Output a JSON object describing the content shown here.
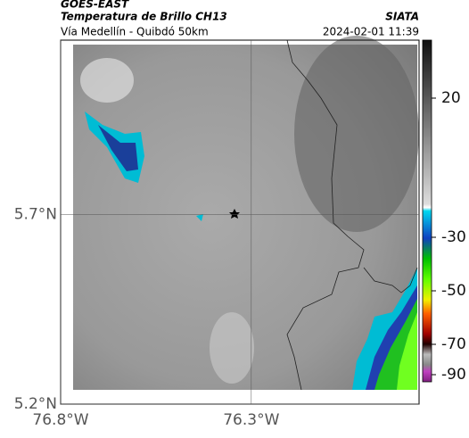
{
  "header": {
    "source": "GOES-EAST",
    "product": "Temperatura de Brillo CH13",
    "org": "SIATA",
    "route": "Vía Medellín - Quibdó 50km",
    "datetime": "2024-02-01 11:39"
  },
  "map": {
    "xlim": [
      -76.8,
      -75.86
    ],
    "ylim": [
      5.2,
      6.16
    ],
    "xticks": [
      {
        "value": -76.8,
        "label": "76.8°W"
      },
      {
        "value": -76.3,
        "label": "76.3°W"
      }
    ],
    "yticks": [
      {
        "value": 5.7,
        "label": "5.7°N"
      },
      {
        "value": 5.2,
        "label": "5.2°N"
      }
    ]
  },
  "colorbar": {
    "ticks": [
      20,
      -30,
      -50,
      -70,
      -90
    ]
  }
}
